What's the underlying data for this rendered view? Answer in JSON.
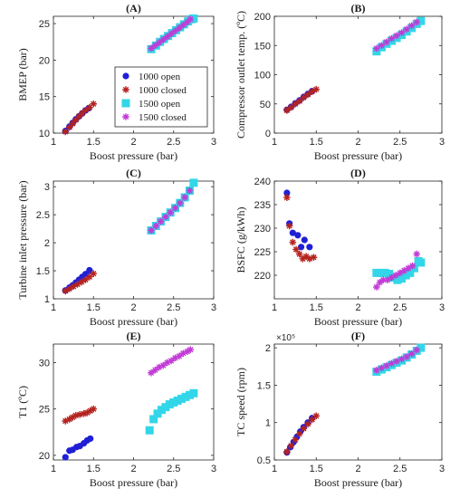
{
  "colors": {
    "1000 open": "#1f1fd6",
    "1000 closed": "#b5231f",
    "1500 open": "#33d6e8",
    "1500 closed": "#c23ad6"
  },
  "chart_data": [
    {
      "type": "scatter",
      "panel_label": "(A)",
      "xlabel": "Boost pressure (bar)",
      "ylabel": "BMEP (bar)",
      "xlim": [
        1,
        3
      ],
      "ylim": [
        10,
        26
      ],
      "xticks": [
        1,
        1.5,
        2,
        2.5,
        3
      ],
      "xtick_labels": [
        "1",
        "1.5",
        "2",
        "2.5",
        "3"
      ],
      "yticks": [
        10,
        15,
        20,
        25
      ],
      "ytick_labels": [
        "10",
        "15",
        "20",
        "25"
      ],
      "legend": {
        "placement": "center",
        "entries": [
          "1000 open",
          "1000 closed",
          "1500 open",
          "1500 closed"
        ]
      },
      "series": [
        {
          "name": "1000 open",
          "marker": "circle",
          "x": [
            1.15,
            1.2,
            1.24,
            1.28,
            1.32,
            1.36,
            1.4,
            1.44
          ],
          "y": [
            10.3,
            10.9,
            11.4,
            11.9,
            12.3,
            12.7,
            13.1,
            13.4
          ]
        },
        {
          "name": "1000 closed",
          "marker": "star",
          "x": [
            1.15,
            1.2,
            1.24,
            1.28,
            1.32,
            1.36,
            1.4,
            1.45,
            1.5
          ],
          "y": [
            10.2,
            10.8,
            11.3,
            11.8,
            12.3,
            12.7,
            13.1,
            13.5,
            14.0
          ]
        },
        {
          "name": "1500 open",
          "marker": "square",
          "x": [
            2.22,
            2.28,
            2.33,
            2.38,
            2.43,
            2.48,
            2.53,
            2.58,
            2.63,
            2.68,
            2.72,
            2.75
          ],
          "y": [
            21.5,
            22.0,
            22.5,
            22.9,
            23.3,
            23.7,
            24.1,
            24.5,
            24.9,
            25.3,
            25.6,
            25.7
          ]
        },
        {
          "name": "1500 closed",
          "marker": "star",
          "x": [
            2.22,
            2.27,
            2.32,
            2.37,
            2.42,
            2.47,
            2.52,
            2.57,
            2.62,
            2.67,
            2.71
          ],
          "y": [
            21.6,
            22.0,
            22.4,
            22.8,
            23.2,
            23.6,
            24.0,
            24.4,
            24.8,
            25.2,
            25.6
          ]
        }
      ]
    },
    {
      "type": "scatter",
      "panel_label": "(B)",
      "xlabel": "Boost pressure (bar)",
      "ylabel": "Compressor outlet temp. (ºC)",
      "xlim": [
        1,
        3
      ],
      "ylim": [
        0,
        200
      ],
      "xticks": [
        1,
        1.5,
        2,
        2.5,
        3
      ],
      "xtick_labels": [
        "1",
        "1.5",
        "2",
        "2.5",
        "3"
      ],
      "yticks": [
        0,
        50,
        100,
        150,
        200
      ],
      "ytick_labels": [
        "0",
        "50",
        "100",
        "150",
        "200"
      ],
      "series": [
        {
          "name": "1000 open",
          "marker": "circle",
          "x": [
            1.15,
            1.2,
            1.25,
            1.3,
            1.35,
            1.4,
            1.45
          ],
          "y": [
            40,
            45,
            51,
            56,
            62,
            67,
            72
          ]
        },
        {
          "name": "1000 closed",
          "marker": "star",
          "x": [
            1.15,
            1.2,
            1.25,
            1.3,
            1.35,
            1.4,
            1.45,
            1.5
          ],
          "y": [
            39,
            44,
            50,
            55,
            61,
            66,
            71,
            75
          ]
        },
        {
          "name": "1500 open",
          "marker": "square",
          "x": [
            2.22,
            2.28,
            2.34,
            2.4,
            2.46,
            2.52,
            2.58,
            2.64,
            2.7,
            2.75
          ],
          "y": [
            140,
            147,
            153,
            158,
            163,
            168,
            174,
            180,
            187,
            192
          ]
        },
        {
          "name": "1500 closed",
          "marker": "star",
          "x": [
            2.22,
            2.28,
            2.34,
            2.4,
            2.46,
            2.52,
            2.58,
            2.64,
            2.7
          ],
          "y": [
            145,
            150,
            156,
            162,
            167,
            172,
            178,
            184,
            190
          ]
        }
      ]
    },
    {
      "type": "scatter",
      "panel_label": "(C)",
      "xlabel": "Boost pressure (bar)",
      "ylabel": "Turbine inlet pressure (bar)",
      "xlim": [
        1,
        3
      ],
      "ylim": [
        1,
        3.1
      ],
      "xticks": [
        1,
        1.5,
        2,
        2.5,
        3
      ],
      "xtick_labels": [
        "1",
        "1.5",
        "2",
        "2.5",
        "3"
      ],
      "yticks": [
        1,
        1.5,
        2,
        2.5,
        3
      ],
      "ytick_labels": [
        "1",
        "1.5",
        "2",
        "2.5",
        "3"
      ],
      "series": [
        {
          "name": "1000 open",
          "marker": "circle",
          "x": [
            1.15,
            1.2,
            1.24,
            1.28,
            1.32,
            1.36,
            1.4,
            1.45
          ],
          "y": [
            1.15,
            1.2,
            1.24,
            1.29,
            1.34,
            1.39,
            1.44,
            1.51
          ]
        },
        {
          "name": "1000 closed",
          "marker": "star",
          "x": [
            1.15,
            1.2,
            1.25,
            1.3,
            1.35,
            1.4,
            1.45,
            1.5
          ],
          "y": [
            1.14,
            1.18,
            1.22,
            1.26,
            1.3,
            1.34,
            1.39,
            1.45
          ]
        },
        {
          "name": "1500 open",
          "marker": "square",
          "x": [
            2.22,
            2.28,
            2.34,
            2.4,
            2.46,
            2.52,
            2.58,
            2.64,
            2.7,
            2.75
          ],
          "y": [
            2.22,
            2.3,
            2.38,
            2.46,
            2.54,
            2.62,
            2.71,
            2.81,
            2.93,
            3.07
          ]
        },
        {
          "name": "1500 closed",
          "marker": "star",
          "x": [
            2.22,
            2.28,
            2.34,
            2.4,
            2.46,
            2.52,
            2.58,
            2.64,
            2.7
          ],
          "y": [
            2.22,
            2.3,
            2.38,
            2.46,
            2.54,
            2.62,
            2.71,
            2.81,
            2.93
          ]
        }
      ]
    },
    {
      "type": "scatter",
      "panel_label": "(D)",
      "xlabel": "Boost pressure (bar)",
      "ylabel": "BSFC (g/kWh)",
      "xlim": [
        1,
        3
      ],
      "ylim": [
        215,
        240
      ],
      "xticks": [
        1,
        1.5,
        2,
        2.5,
        3
      ],
      "xtick_labels": [
        "1",
        "1.5",
        "2",
        "2.5",
        "3"
      ],
      "yticks": [
        220,
        225,
        230,
        235,
        240
      ],
      "ytick_labels": [
        "220",
        "225",
        "230",
        "235",
        "240"
      ],
      "series": [
        {
          "name": "1000 open",
          "marker": "circle",
          "x": [
            1.15,
            1.18,
            1.22,
            1.28,
            1.32,
            1.36,
            1.42
          ],
          "y": [
            237.5,
            231.0,
            229.0,
            228.5,
            226.0,
            227.5,
            226.0
          ]
        },
        {
          "name": "1000 closed",
          "marker": "star",
          "x": [
            1.15,
            1.18,
            1.22,
            1.26,
            1.3,
            1.34,
            1.38,
            1.42,
            1.47
          ],
          "y": [
            236.5,
            230.5,
            227.0,
            225.5,
            224.5,
            223.5,
            224.0,
            223.5,
            223.8
          ]
        },
        {
          "name": "1500 open",
          "marker": "square",
          "x": [
            2.22,
            2.27,
            2.32,
            2.37,
            2.42,
            2.47,
            2.52,
            2.57,
            2.62,
            2.67,
            2.72,
            2.75
          ],
          "y": [
            220.5,
            220.5,
            220.5,
            220.3,
            219.5,
            219.0,
            219.3,
            220.0,
            220.5,
            221.5,
            223.0,
            222.7
          ]
        },
        {
          "name": "1500 closed",
          "marker": "star",
          "x": [
            2.22,
            2.26,
            2.3,
            2.35,
            2.4,
            2.45,
            2.5,
            2.55,
            2.6,
            2.65,
            2.7
          ],
          "y": [
            217.5,
            218.5,
            219.0,
            219.0,
            219.5,
            220.0,
            220.5,
            221.0,
            221.5,
            222.0,
            224.5
          ]
        }
      ]
    },
    {
      "type": "scatter",
      "panel_label": "(E)",
      "xlabel": "Boost pressure (bar)",
      "ylabel": "T1 (ºC)",
      "xlim": [
        1,
        3
      ],
      "ylim": [
        19.5,
        32
      ],
      "xticks": [
        1,
        1.5,
        2,
        2.5,
        3
      ],
      "xtick_labels": [
        "1",
        "1.5",
        "2",
        "2.5",
        "3"
      ],
      "yticks": [
        20,
        25,
        30
      ],
      "ytick_labels": [
        "20",
        "25",
        "30"
      ],
      "series": [
        {
          "name": "1000 open",
          "marker": "circle",
          "x": [
            1.15,
            1.2,
            1.24,
            1.29,
            1.33,
            1.38,
            1.42,
            1.46
          ],
          "y": [
            19.8,
            20.5,
            20.6,
            20.9,
            21.0,
            21.3,
            21.6,
            21.8
          ]
        },
        {
          "name": "1000 closed",
          "marker": "star",
          "x": [
            1.15,
            1.2,
            1.24,
            1.28,
            1.33,
            1.38,
            1.42,
            1.46,
            1.5
          ],
          "y": [
            23.7,
            23.9,
            24.1,
            24.3,
            24.4,
            24.5,
            24.6,
            24.8,
            25.0
          ]
        },
        {
          "name": "1500 open",
          "marker": "square",
          "x": [
            2.2,
            2.25,
            2.3,
            2.35,
            2.4,
            2.45,
            2.5,
            2.55,
            2.6,
            2.65,
            2.7,
            2.75
          ],
          "y": [
            22.7,
            23.9,
            24.5,
            24.9,
            25.2,
            25.5,
            25.7,
            25.9,
            26.1,
            26.3,
            26.5,
            26.7
          ]
        },
        {
          "name": "1500 closed",
          "marker": "star",
          "x": [
            2.22,
            2.27,
            2.32,
            2.37,
            2.42,
            2.47,
            2.52,
            2.57,
            2.62,
            2.67,
            2.71
          ],
          "y": [
            28.9,
            29.2,
            29.5,
            29.7,
            30.0,
            30.2,
            30.5,
            30.7,
            31.0,
            31.2,
            31.4
          ]
        }
      ]
    },
    {
      "type": "scatter",
      "panel_label": "(F)",
      "xlabel": "Boost pressure (bar)",
      "ylabel": "TC speed (rpm)",
      "y_multiplier": "×10⁵",
      "xlim": [
        1,
        3
      ],
      "ylim": [
        0.5,
        2.05
      ],
      "xticks": [
        1,
        1.5,
        2,
        2.5,
        3
      ],
      "xtick_labels": [
        "1",
        "1.5",
        "2",
        "2.5",
        "3"
      ],
      "yticks": [
        0.5,
        1,
        1.5,
        2
      ],
      "ytick_labels": [
        "0.5",
        "1",
        "1.5",
        "2"
      ],
      "series": [
        {
          "name": "1000 open",
          "marker": "circle",
          "x": [
            1.15,
            1.19,
            1.23,
            1.27,
            1.31,
            1.35,
            1.4,
            1.45
          ],
          "y": [
            0.6,
            0.67,
            0.74,
            0.81,
            0.88,
            0.94,
            1.0,
            1.06
          ]
        },
        {
          "name": "1000 closed",
          "marker": "star",
          "x": [
            1.15,
            1.2,
            1.25,
            1.3,
            1.35,
            1.4,
            1.45,
            1.5
          ],
          "y": [
            0.61,
            0.69,
            0.77,
            0.85,
            0.92,
            0.98,
            1.04,
            1.09
          ]
        },
        {
          "name": "1500 open",
          "marker": "square",
          "x": [
            2.22,
            2.28,
            2.34,
            2.4,
            2.46,
            2.52,
            2.58,
            2.64,
            2.7,
            2.75
          ],
          "y": [
            1.68,
            1.71,
            1.74,
            1.77,
            1.8,
            1.83,
            1.87,
            1.91,
            1.96,
            2.0
          ]
        },
        {
          "name": "1500 closed",
          "marker": "star",
          "x": [
            2.22,
            2.28,
            2.34,
            2.4,
            2.46,
            2.52,
            2.58,
            2.64,
            2.7
          ],
          "y": [
            1.7,
            1.73,
            1.76,
            1.79,
            1.82,
            1.85,
            1.88,
            1.92,
            1.97
          ]
        }
      ]
    }
  ]
}
